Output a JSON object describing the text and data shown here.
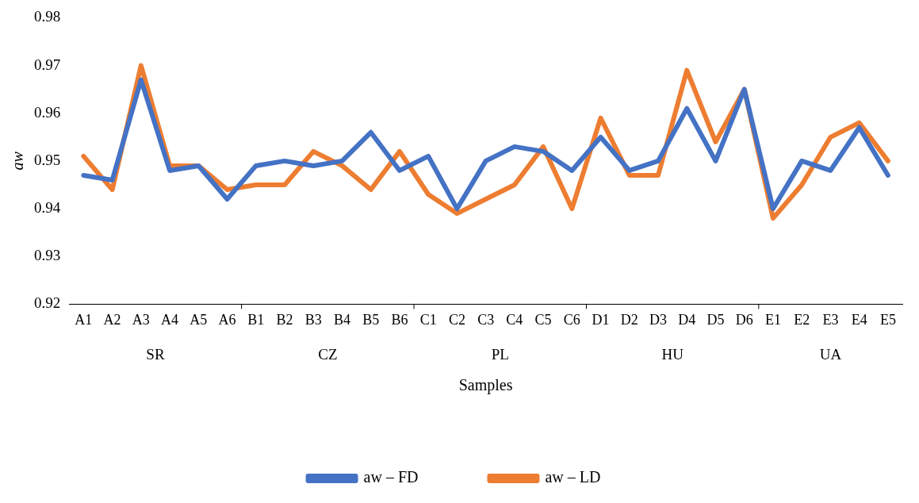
{
  "chart_data": {
    "type": "line",
    "xlabel": "Samples",
    "ylabel": "aw",
    "categories": [
      "A1",
      "A2",
      "A3",
      "A4",
      "A5",
      "A6",
      "B1",
      "B2",
      "B3",
      "B4",
      "B5",
      "B6",
      "C1",
      "C2",
      "C3",
      "C4",
      "C5",
      "C6",
      "D1",
      "D2",
      "D3",
      "D4",
      "D5",
      "D6",
      "E1",
      "E2",
      "E3",
      "E4",
      "E5"
    ],
    "series": [
      {
        "name": "aw – FD",
        "color": "#4472c4",
        "values": [
          0.947,
          0.946,
          0.967,
          0.948,
          0.949,
          0.942,
          0.949,
          0.95,
          0.949,
          0.95,
          0.956,
          0.948,
          0.951,
          0.94,
          0.95,
          0.953,
          0.952,
          0.948,
          0.955,
          0.948,
          0.95,
          0.961,
          0.95,
          0.965,
          0.94,
          0.95,
          0.948,
          0.957,
          0.947
        ]
      },
      {
        "name": "aw – LD",
        "color": "#ed7d31",
        "values": [
          0.951,
          0.944,
          0.97,
          0.949,
          0.949,
          0.944,
          0.945,
          0.945,
          0.952,
          0.949,
          0.944,
          0.952,
          0.943,
          0.939,
          0.942,
          0.945,
          0.953,
          0.94,
          0.959,
          0.947,
          0.947,
          0.969,
          0.954,
          0.965,
          0.938,
          0.945,
          0.955,
          0.958,
          0.95
        ]
      }
    ],
    "annotations": [
      "SR",
      "CZ",
      "PL",
      "HU",
      "UA"
    ],
    "ylim": [
      0.92,
      0.98
    ],
    "yticks": [
      0.92,
      0.93,
      0.94,
      0.95,
      0.96,
      0.97,
      0.98
    ],
    "grid": false,
    "legend": "bottom",
    "marker": "none",
    "line_style": "solid"
  }
}
